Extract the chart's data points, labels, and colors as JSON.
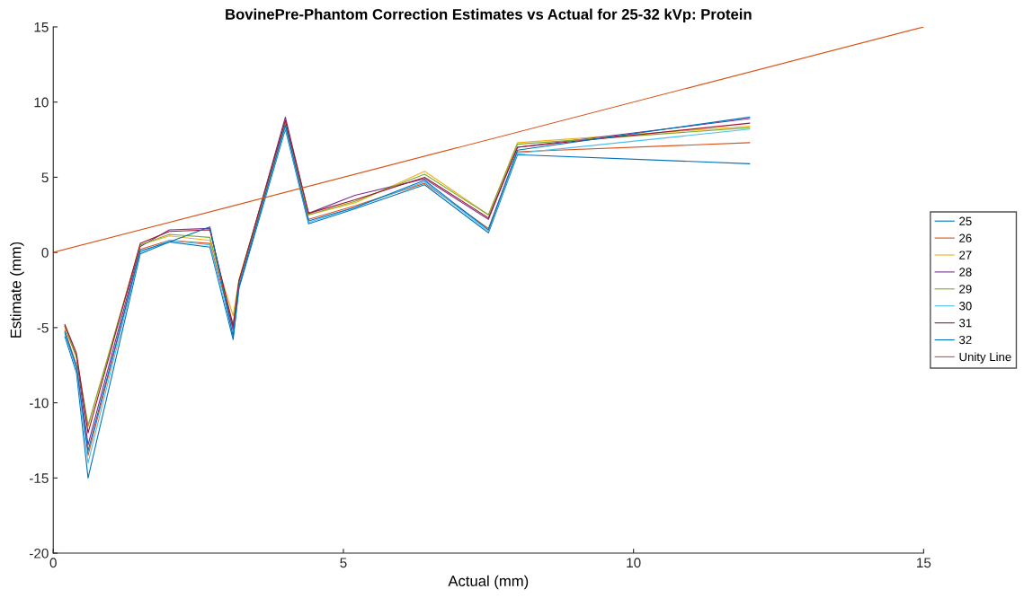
{
  "chart_data": {
    "type": "line",
    "title": "BovinePre-Phantom Correction Estimates vs Actual for 25-32 kVp: Protein",
    "xlabel": "Actual (mm)",
    "ylabel": "Estimate (mm)",
    "x": [
      0.2,
      0.4,
      0.6,
      1.5,
      2.0,
      2.7,
      3.1,
      3.2,
      4.0,
      4.4,
      5.2,
      6.4,
      7.5,
      8.0,
      12.0
    ],
    "xlim": [
      0,
      15
    ],
    "xticks": [
      0,
      5,
      10,
      15
    ],
    "ylim": [
      -20,
      15
    ],
    "yticks": [
      -20,
      -15,
      -10,
      -5,
      0,
      5,
      10,
      15
    ],
    "grid": false,
    "legend": "right",
    "marker": "none",
    "line_style": "solid",
    "series": [
      {
        "name": "25",
        "color": "#0072bd",
        "values": [
          -5.6,
          -8.0,
          -15.0,
          -0.1,
          0.7,
          0.35,
          -5.8,
          -2.4,
          8.2,
          1.9,
          2.9,
          4.5,
          1.3,
          6.5,
          5.9
        ]
      },
      {
        "name": "26",
        "color": "#d95319",
        "values": [
          -5.2,
          -7.5,
          -13.5,
          0.2,
          0.8,
          0.6,
          -5.0,
          -2.0,
          8.4,
          2.2,
          3.1,
          4.6,
          1.6,
          6.7,
          7.3
        ]
      },
      {
        "name": "27",
        "color": "#edb120",
        "values": [
          -5.0,
          -7.0,
          -11.6,
          0.5,
          1.1,
          0.8,
          -4.2,
          -1.8,
          8.6,
          2.5,
          3.3,
          5.4,
          2.5,
          7.3,
          8.4
        ]
      },
      {
        "name": "28",
        "color": "#7e2f8e",
        "values": [
          -4.9,
          -6.9,
          -12.8,
          0.4,
          1.5,
          1.6,
          -5.2,
          -2.0,
          9.0,
          2.6,
          3.8,
          4.9,
          2.2,
          7.0,
          8.9
        ]
      },
      {
        "name": "29",
        "color": "#77ac30",
        "values": [
          -4.9,
          -6.9,
          -11.5,
          0.5,
          1.2,
          1.0,
          -4.8,
          -1.9,
          8.7,
          2.5,
          3.4,
          5.2,
          2.5,
          7.2,
          8.3
        ]
      },
      {
        "name": "30",
        "color": "#4dbeee",
        "values": [
          -5.4,
          -7.8,
          -14.0,
          0.0,
          0.8,
          0.5,
          -5.5,
          -2.2,
          8.3,
          2.0,
          3.0,
          4.7,
          1.4,
          6.6,
          8.2
        ]
      },
      {
        "name": "31",
        "color": "#a2142f",
        "values": [
          -4.8,
          -6.7,
          -12.0,
          0.6,
          1.4,
          1.5,
          -4.9,
          -1.9,
          8.8,
          2.6,
          3.5,
          5.0,
          2.3,
          7.0,
          8.6
        ]
      },
      {
        "name": "32",
        "color": "#0072bd",
        "values": [
          -5.3,
          -7.6,
          -13.2,
          0.1,
          0.7,
          1.7,
          -5.6,
          -2.3,
          8.5,
          2.1,
          3.0,
          4.8,
          1.5,
          6.8,
          9.0
        ]
      },
      {
        "name": "Unity Line",
        "color": "#d95319",
        "x": [
          0,
          15
        ],
        "values": [
          0,
          15
        ]
      }
    ]
  }
}
